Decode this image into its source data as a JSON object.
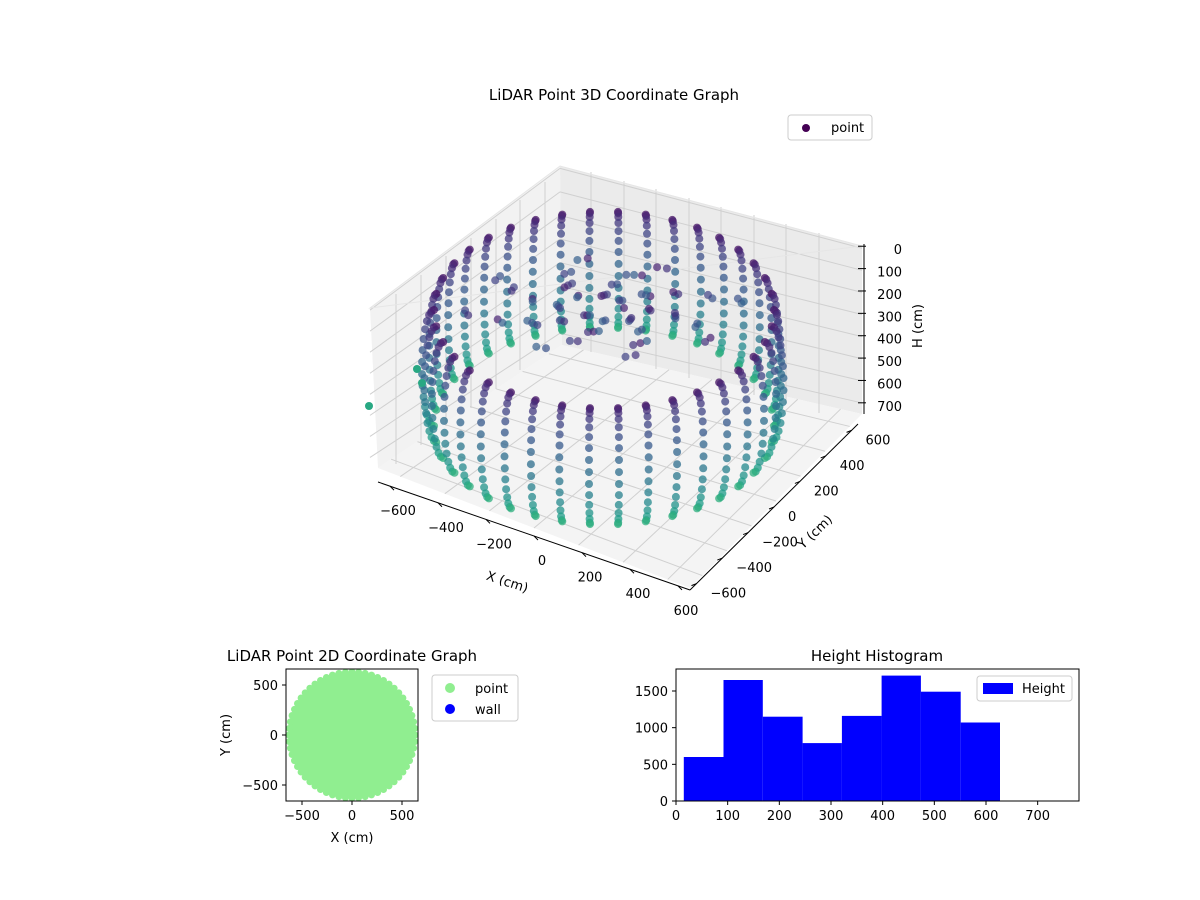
{
  "figure": {
    "plot3d": {
      "title": "LiDAR Point 3D Coordinate Graph",
      "legend": {
        "label": "point",
        "color": "#440154"
      },
      "xlabel": "X (cm)",
      "ylabel": "Y (cm)",
      "zlabel": "H (cm)",
      "xticks": [
        "−600",
        "−400",
        "−200",
        "0",
        "200",
        "400",
        "600"
      ],
      "yticks": [
        "−600",
        "−400",
        "−200",
        "0",
        "200",
        "400",
        "600"
      ],
      "zticks": [
        "0",
        "100",
        "200",
        "300",
        "400",
        "500",
        "600",
        "700"
      ]
    },
    "plot2d": {
      "title": "LiDAR Point 2D Coordinate Graph",
      "xlabel": "X (cm)",
      "ylabel": "Y (cm)",
      "xticks": [
        "−500",
        "0",
        "500"
      ],
      "yticks": [
        "500",
        "0",
        "−500"
      ],
      "legend": [
        {
          "label": "point",
          "color": "#90ee90"
        },
        {
          "label": "wall",
          "color": "#0000ff"
        }
      ]
    },
    "histogram": {
      "title": "Height Histogram",
      "legend": {
        "label": "Height",
        "color": "#0000ff"
      },
      "xticks": [
        "0",
        "100",
        "200",
        "300",
        "400",
        "500",
        "600",
        "700"
      ],
      "yticks": [
        "0",
        "500",
        "1000",
        "1500"
      ]
    }
  },
  "chart_data": [
    {
      "type": "scatter",
      "title": "LiDAR Point 3D Coordinate Graph",
      "xlabel": "X (cm)",
      "ylabel": "Y (cm)",
      "zlabel": "H (cm)",
      "xlim": [
        -650,
        650
      ],
      "ylim": [
        -650,
        650
      ],
      "zlim": [
        760,
        0
      ],
      "z_axis_inverted": true,
      "colormap": "viridis",
      "legend_position": "top-right",
      "grid": true,
      "series": [
        {
          "name": "point",
          "shape": "torus-ring",
          "outer_radius": 620,
          "inner_radius": 300,
          "height_range": [
            0,
            620
          ]
        }
      ]
    },
    {
      "type": "scatter",
      "title": "LiDAR Point 2D Coordinate Graph",
      "xlabel": "X (cm)",
      "ylabel": "Y (cm)",
      "xlim": [
        -650,
        650
      ],
      "ylim": [
        -650,
        650
      ],
      "legend_position": "outside-right",
      "series": [
        {
          "name": "point",
          "color": "#90ee90",
          "shape": "filled-disc",
          "radius": 620
        },
        {
          "name": "wall",
          "color": "#0000ff",
          "points": []
        }
      ]
    },
    {
      "type": "bar",
      "title": "Height Histogram",
      "xlim": [
        0,
        780
      ],
      "ylim": [
        0,
        1800
      ],
      "legend_position": "top-right",
      "bin_edges": [
        15,
        92,
        168,
        245,
        321,
        398,
        474,
        551,
        627
      ],
      "values": [
        600,
        1650,
        1150,
        790,
        1160,
        1710,
        1490,
        1070
      ],
      "series": [
        {
          "name": "Height",
          "color": "#0000ff"
        }
      ]
    }
  ]
}
